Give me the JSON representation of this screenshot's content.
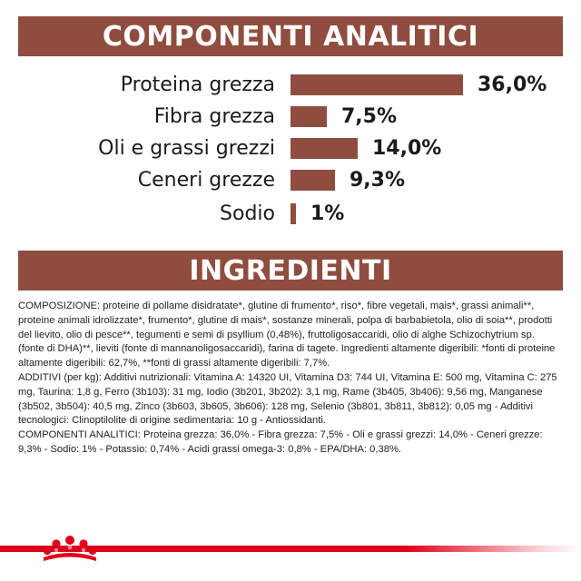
{
  "header1": {
    "title": "COMPONENTI ANALITICI"
  },
  "header2": {
    "title": "INGREDIENTI"
  },
  "chart_data": {
    "type": "bar",
    "orientation": "horizontal",
    "categories": [
      "Proteina grezza",
      "Fibra grezza",
      "Oli e grassi grezzi",
      "Ceneri grezze",
      "Sodio"
    ],
    "values": [
      36.0,
      7.5,
      14.0,
      9.3,
      1.0
    ],
    "value_labels": [
      "36,0%",
      "7,5%",
      "14,0%",
      "9,3%",
      "1%"
    ],
    "unit": "%",
    "xlim": [
      0,
      36.0
    ],
    "grid": false,
    "bar_color": "#8f4d40"
  },
  "ingredients": {
    "paragraphs": [
      "COMPOSIZIONE: proteine di pollame disidratate*, glutine di frumento*, riso*, fibre vegetali, mais*, grassi animali**, proteine animali idrolizzate*, frumento*, glutine di mais*, sostanze minerali, polpa di barbabietola, olio di soia**, prodotti del lievito, olio di pesce**, tegumenti e semi di psyllium (0,48%), fruttoligosaccaridi, olio di alghe Schizochytrium sp. (fonte di DHA)**, lieviti (fonte di mannanoligosaccaridi), farina di tagete. Ingredienti altamente digeribili: *fonti di proteine altamente digeribili: 62,7%, **fonti di grassi altamente digeribili: 7,7%.",
      "ADDITIVI (per kg): Additivi nutrizionali: Vitamina A: 14320 UI, Vitamina D3: 744 UI, Vitamina E: 500 mg, Vitamina C: 275 mg, Taurina: 1,8 g, Ferro (3b103): 31 mg, Iodio (3b201, 3b202): 3,1 mg, Rame (3b405, 3b406): 9,56 mg, Manganese (3b502, 3b504): 40,5 mg, Zinco (3b603, 3b605, 3b606): 128 mg, Selenio (3b801, 3b811, 3b812): 0,05 mg - Additivi tecnologici: Clinoptilolite di origine sedimentaria: 10 g - Antiossidanti.",
      "COMPONENTI ANALITICI: Proteina grezza: 36,0% - Fibra grezza: 7,5% - Oli e grassi grezzi: 14,0% - Ceneri grezze: 9,3% - Sodio: 1% - Potassio: 0,74% - Acidi grassi omega-3: 0,8% - EPA/DHA: 0,38%."
    ]
  },
  "footer": {
    "logo_icon": "royal-canin-crown-logo",
    "accent_color": "#e1001a"
  }
}
